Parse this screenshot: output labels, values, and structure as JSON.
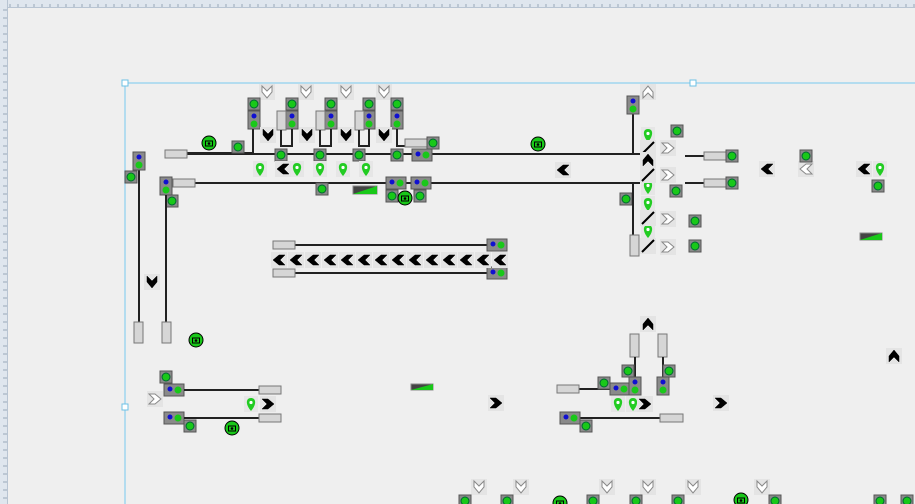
{
  "editor": {
    "rulers": {
      "horizontal": true,
      "vertical": true
    },
    "selection_frame": true
  },
  "colors": {
    "background": "#efefef",
    "ruler": "#dfe6ee",
    "selection": "#9fd6ef",
    "lamp_green": "#19c819",
    "lamp_box": "#8a8a8a",
    "signal_blue": "#1010d0",
    "buffer_fill": "#d6d6d6",
    "track": "#222222",
    "chevron_black": "#000000",
    "chevron_white": "#ffffff",
    "pin_green": "#22cc22",
    "wedge_dark": "#444444"
  },
  "icon_types": [
    "lamp-icon",
    "signal-icon",
    "buffer-stop",
    "chevron-icon",
    "location-pin-icon",
    "camera-icon",
    "switch-icon",
    "ramp-icon"
  ]
}
